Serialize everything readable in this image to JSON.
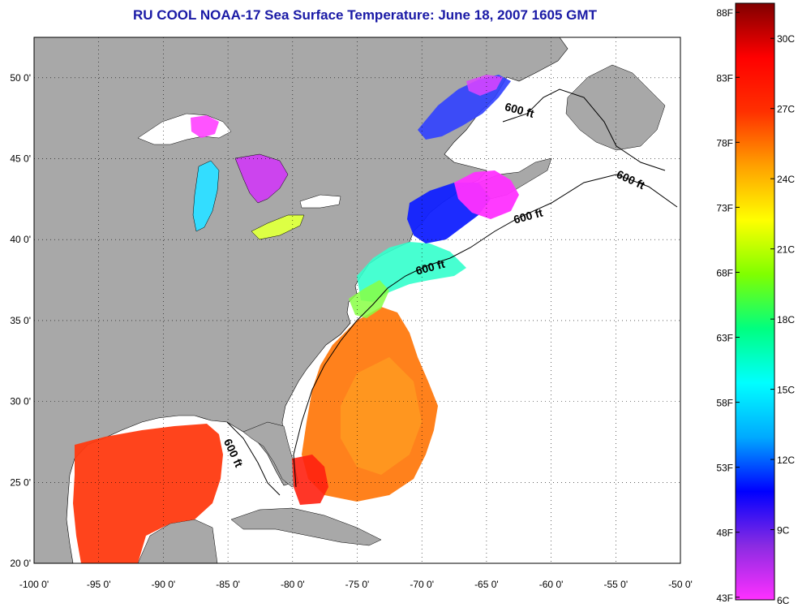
{
  "title": "RU COOL  NOAA-17  Sea Surface Temperature:  June 18, 2007 1605 GMT",
  "map": {
    "lon_range": [
      -100,
      -50
    ],
    "lat_range": [
      20,
      52.5
    ],
    "lon_ticks": [
      "-100 0'",
      "-95 0'",
      "-90 0'",
      "-85 0'",
      "-80 0'",
      "-75 0'",
      "-70 0'",
      "-65 0'",
      "-60 0'",
      "-55 0'",
      "-50 0'"
    ],
    "lat_ticks": [
      "20 0'",
      "25 0'",
      "30 0'",
      "35 0'",
      "40 0'",
      "45 0'",
      "50 0'"
    ],
    "land_color": "#a8a8a8",
    "grid": "dotted",
    "contour_labels": [
      "600 ft",
      "600 ft",
      "600 ft",
      "600 ft",
      "600 ft"
    ]
  },
  "colorbar": {
    "fahrenheit_labels": [
      "88F",
      "83F",
      "78F",
      "73F",
      "68F",
      "63F",
      "58F",
      "53F",
      "48F",
      "43F"
    ],
    "celsius_labels": [
      "30C",
      "27C",
      "24C",
      "21C",
      "18C",
      "15C",
      "12C",
      "9C",
      "6C"
    ],
    "range_c": [
      6,
      31.5
    ],
    "colors": [
      "#ff30ff",
      "#8a2be2",
      "#0000ff",
      "#00aaff",
      "#00ffff",
      "#00ff80",
      "#80ff00",
      "#ffff00",
      "#ffa000",
      "#ff3000",
      "#ff0000",
      "#800000"
    ]
  }
}
